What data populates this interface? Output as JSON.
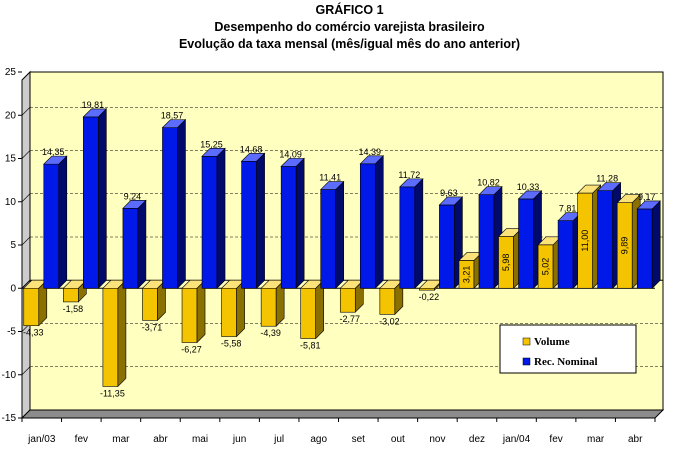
{
  "chart_data": {
    "type": "bar",
    "title": "GRÁFICO 1",
    "subtitle": "Desempenho do comércio varejista brasileiro",
    "subtitle2": "Evolução da taxa mensal (mês/igual mês do ano anterior)",
    "categories": [
      "jan/03",
      "fev",
      "mar",
      "abr",
      "mai",
      "jun",
      "jul",
      "ago",
      "set",
      "out",
      "nov",
      "dez",
      "jan/04",
      "fev",
      "mar",
      "abr"
    ],
    "series": [
      {
        "name": "Volume",
        "values": [
          -4.33,
          -1.58,
          -11.35,
          -3.71,
          -6.27,
          -5.58,
          -4.39,
          -5.81,
          -2.77,
          -3.02,
          -0.22,
          3.21,
          5.98,
          5.02,
          11.0,
          9.89
        ],
        "labels": [
          "-4,33",
          "-1,58",
          "-11,35",
          "-3,71",
          "-6,27",
          "-5,58",
          "-4,39",
          "-5,81",
          "-2,77",
          "-3,02",
          "-0,22",
          "3,21",
          "5,98",
          "5,02",
          "11,00",
          "9,89"
        ]
      },
      {
        "name": "Rec. Nominal",
        "values": [
          14.35,
          19.81,
          9.24,
          18.57,
          15.25,
          14.68,
          14.09,
          11.41,
          14.39,
          11.72,
          9.63,
          10.82,
          10.33,
          7.81,
          11.28,
          9.17
        ],
        "labels": [
          "14,35",
          "19,81",
          "9,24",
          "18,57",
          "15,25",
          "14,68",
          "14,09",
          "11,41",
          "14,39",
          "11,72",
          "9,63",
          "10,82",
          "10,33",
          "7,81",
          "11,28",
          "9,17"
        ]
      }
    ],
    "ylim": [
      -15,
      25
    ],
    "yticks": [
      -15,
      -10,
      -5,
      0,
      5,
      10,
      15,
      20,
      25
    ],
    "grid": true,
    "legend": "bottom-right",
    "colors": {
      "volume": "#f5c400",
      "volume_side": "#8a7000",
      "volume_top": "#fbe37a",
      "nominal": "#0018e8",
      "nominal_side": "#000a6a",
      "nominal_top": "#5b6cff",
      "plot_bg": "#ffffc0",
      "floor": "#8c8c8c",
      "wall_side": "#cccccc"
    }
  }
}
